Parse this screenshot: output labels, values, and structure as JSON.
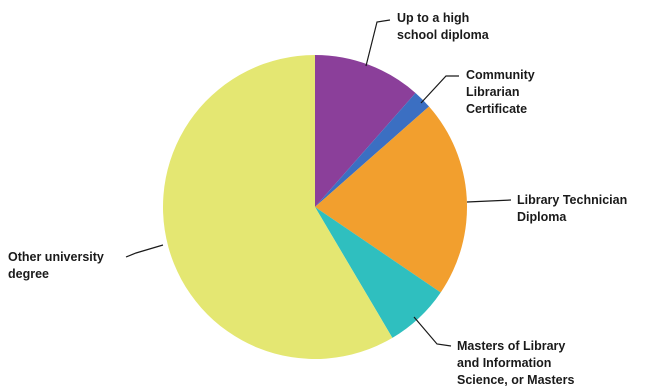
{
  "chart_data": {
    "type": "pie",
    "title": "",
    "start_angle_deg": 0,
    "direction": "clockwise",
    "slices": [
      {
        "label": "Up to a high school diploma",
        "lines": [
          "Up to a high",
          "school diploma"
        ],
        "value": 11.5,
        "color": "#8b3f9a"
      },
      {
        "label": "Community Librarian Certificate",
        "lines": [
          "Community",
          "Librarian",
          "Certificate"
        ],
        "value": 2.0,
        "color": "#3b6fc2"
      },
      {
        "label": "Library Technician Diploma",
        "lines": [
          "Library Technician",
          "Diploma"
        ],
        "value": 21.0,
        "color": "#f29f2e"
      },
      {
        "label": "Masters of Library and Information Science, or Masters",
        "lines": [
          "Masters of Library",
          "and Information",
          "Science, or Masters"
        ],
        "value": 7.0,
        "color": "#2fbfbf"
      },
      {
        "label": "Other university degree",
        "lines": [
          "Other university",
          "degree"
        ],
        "value": 58.5,
        "color": "#e4e772"
      }
    ]
  }
}
